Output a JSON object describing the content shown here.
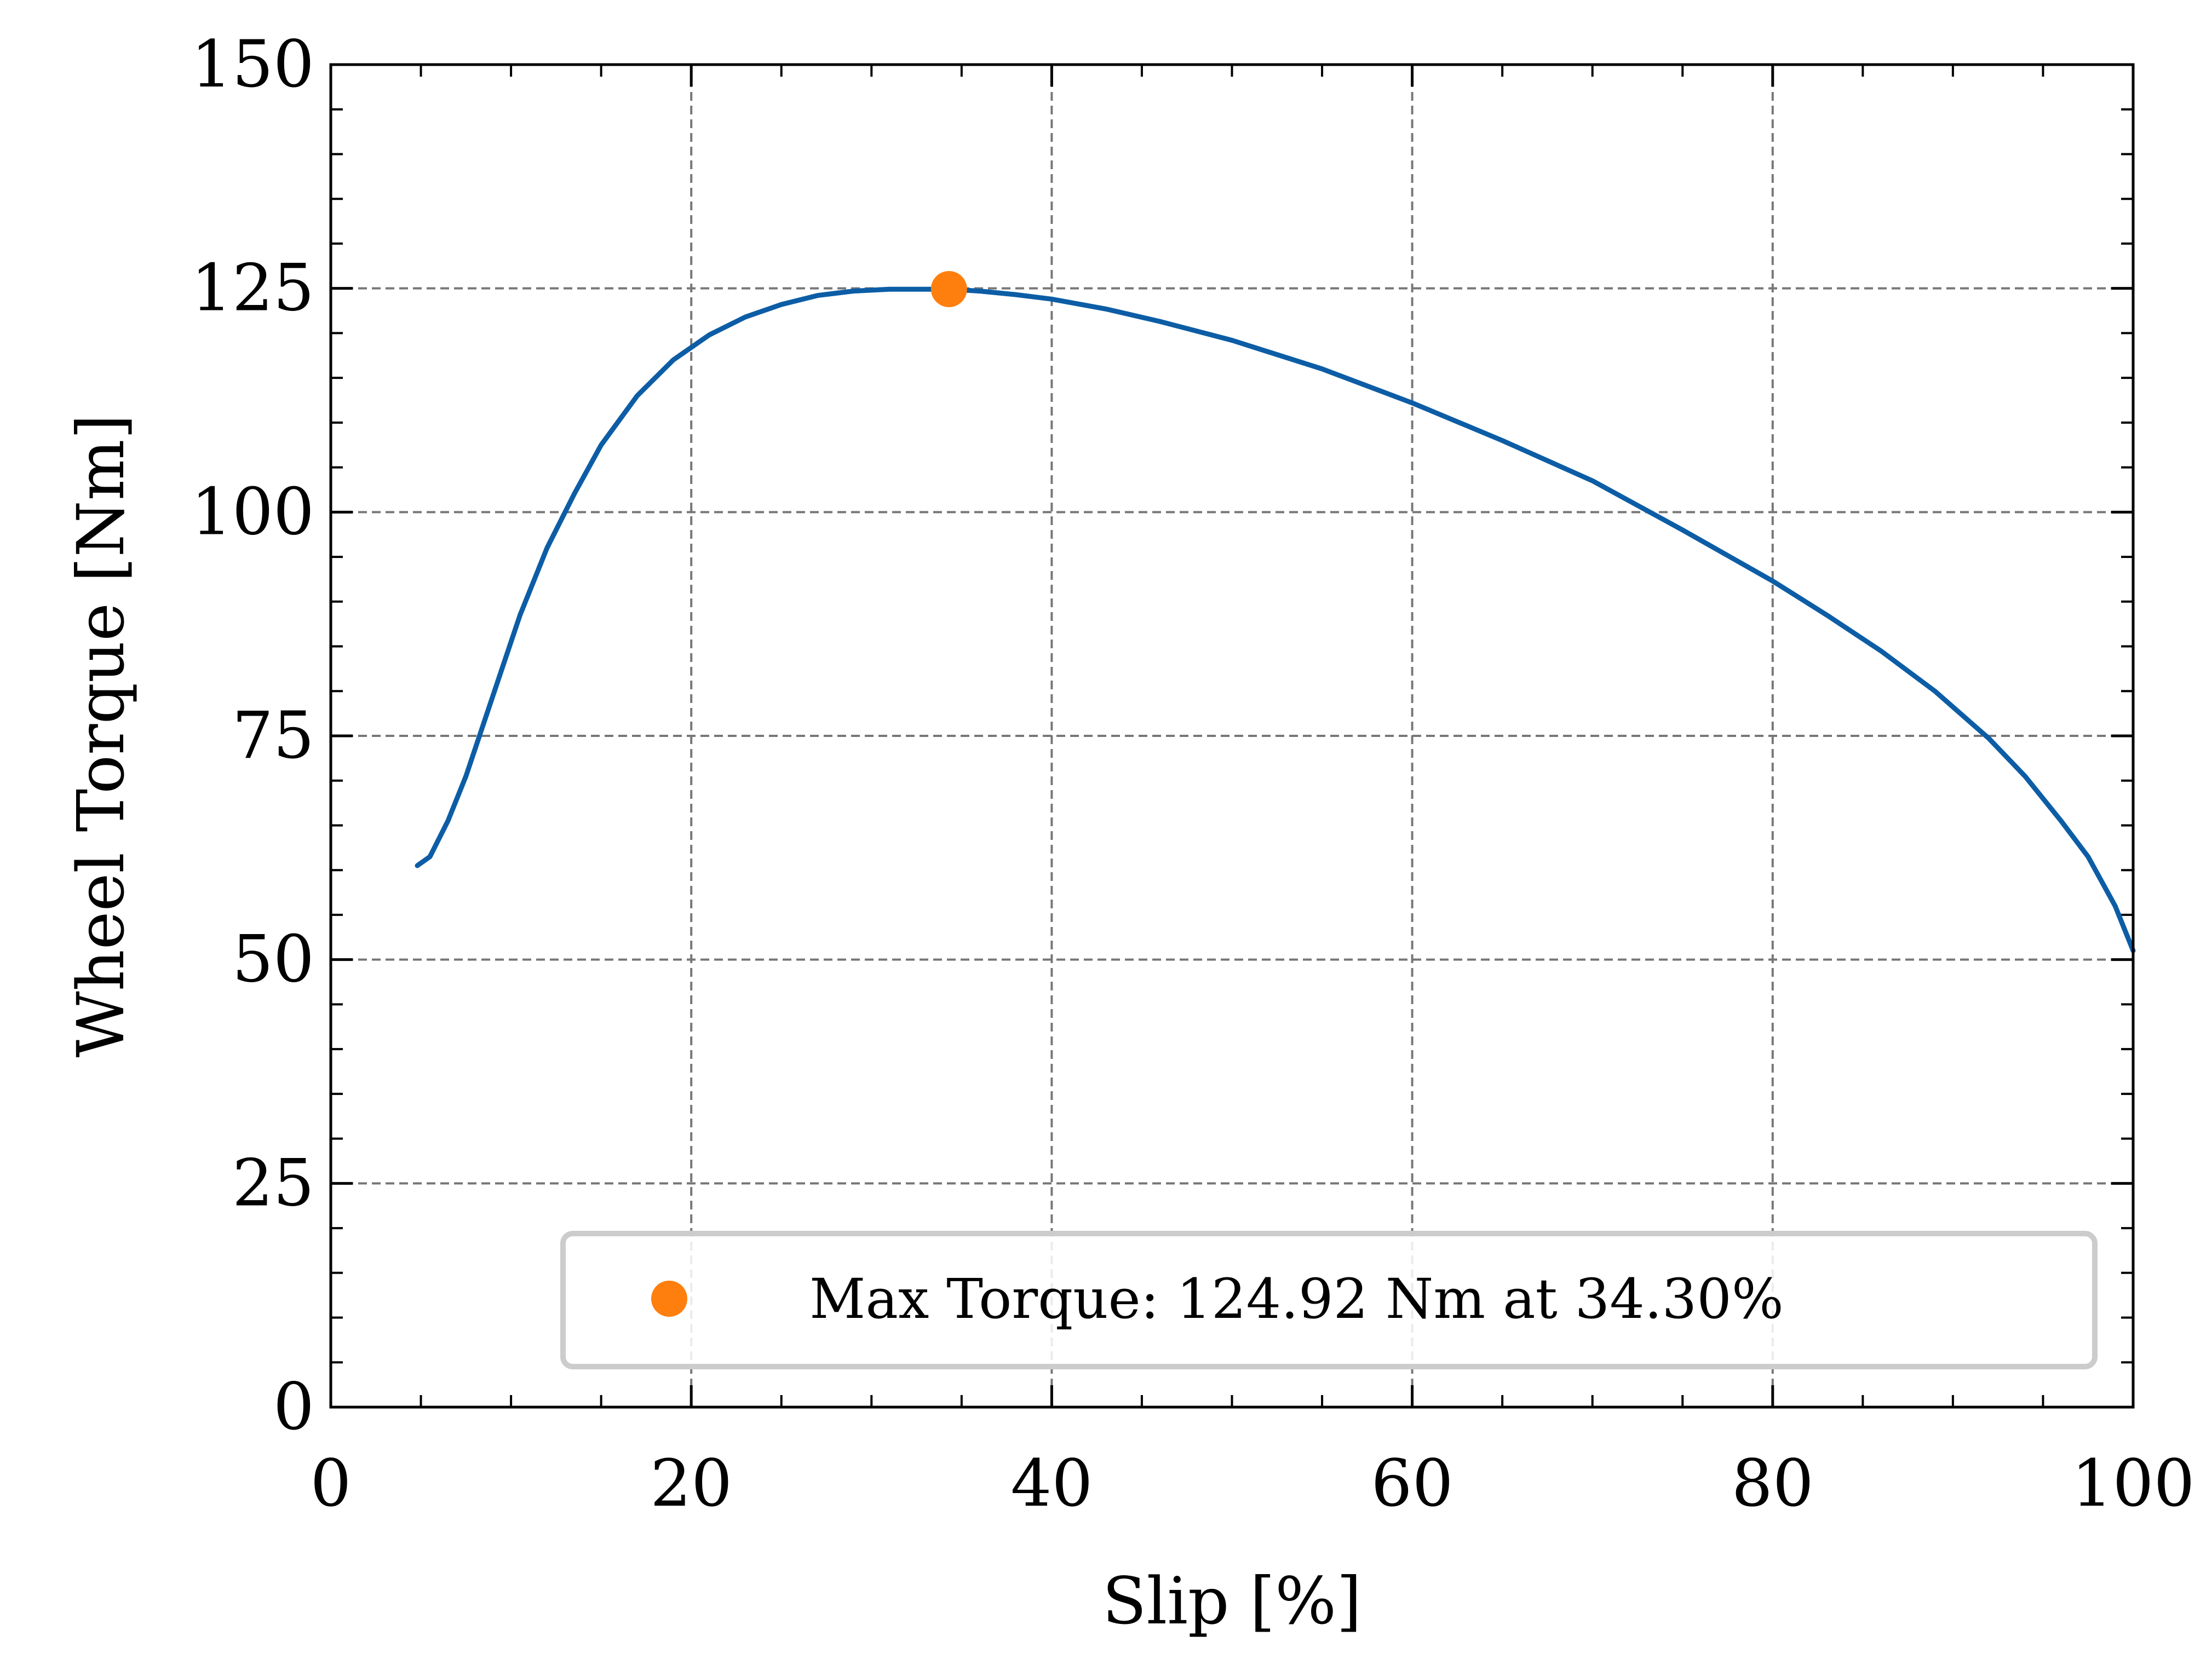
{
  "chart_data": {
    "type": "line",
    "title": "",
    "xlabel": "Slip [%]",
    "ylabel": "Wheel Torque [Nm]",
    "xlim": [
      0,
      100
    ],
    "ylim": [
      0,
      150
    ],
    "x_ticks": [
      "0",
      "20",
      "40",
      "60",
      "80",
      "100"
    ],
    "y_ticks": [
      "0",
      "25",
      "50",
      "75",
      "100",
      "125",
      "150"
    ],
    "x_tick_values": [
      0,
      20,
      40,
      60,
      80,
      100
    ],
    "y_tick_values": [
      0,
      25,
      50,
      75,
      100,
      125,
      150
    ],
    "grid": true,
    "legend_position": "lower-right",
    "series": [
      {
        "kind": "line",
        "color": "#0c5da5",
        "x": [
          4.8,
          5.5,
          6.5,
          7.5,
          8.5,
          9.5,
          10.5,
          12,
          13.5,
          15,
          17,
          19,
          21,
          23,
          25,
          27,
          29,
          31,
          33,
          34.3,
          36,
          38,
          40,
          43,
          46,
          50,
          55,
          60,
          65,
          70,
          75,
          80,
          83,
          86,
          89,
          92,
          94,
          96,
          97.5,
          99,
          100
        ],
        "y": [
          60.5,
          61.5,
          65.5,
          70.5,
          76.5,
          82.5,
          88.5,
          96,
          102,
          107.5,
          113,
          117,
          119.8,
          121.8,
          123.2,
          124.2,
          124.7,
          124.9,
          124.9,
          124.9,
          124.7,
          124.3,
          123.8,
          122.7,
          121.3,
          119.2,
          116,
          112.2,
          108,
          103.5,
          98,
          92.3,
          88.5,
          84.5,
          80,
          74.7,
          70.5,
          65.5,
          61.5,
          56,
          51
        ]
      },
      {
        "kind": "marker",
        "name": "Max Torque: 124.92 Nm at 34.30%",
        "color": "#ff7f0e",
        "x": [
          34.3
        ],
        "y": [
          124.92
        ]
      }
    ]
  }
}
